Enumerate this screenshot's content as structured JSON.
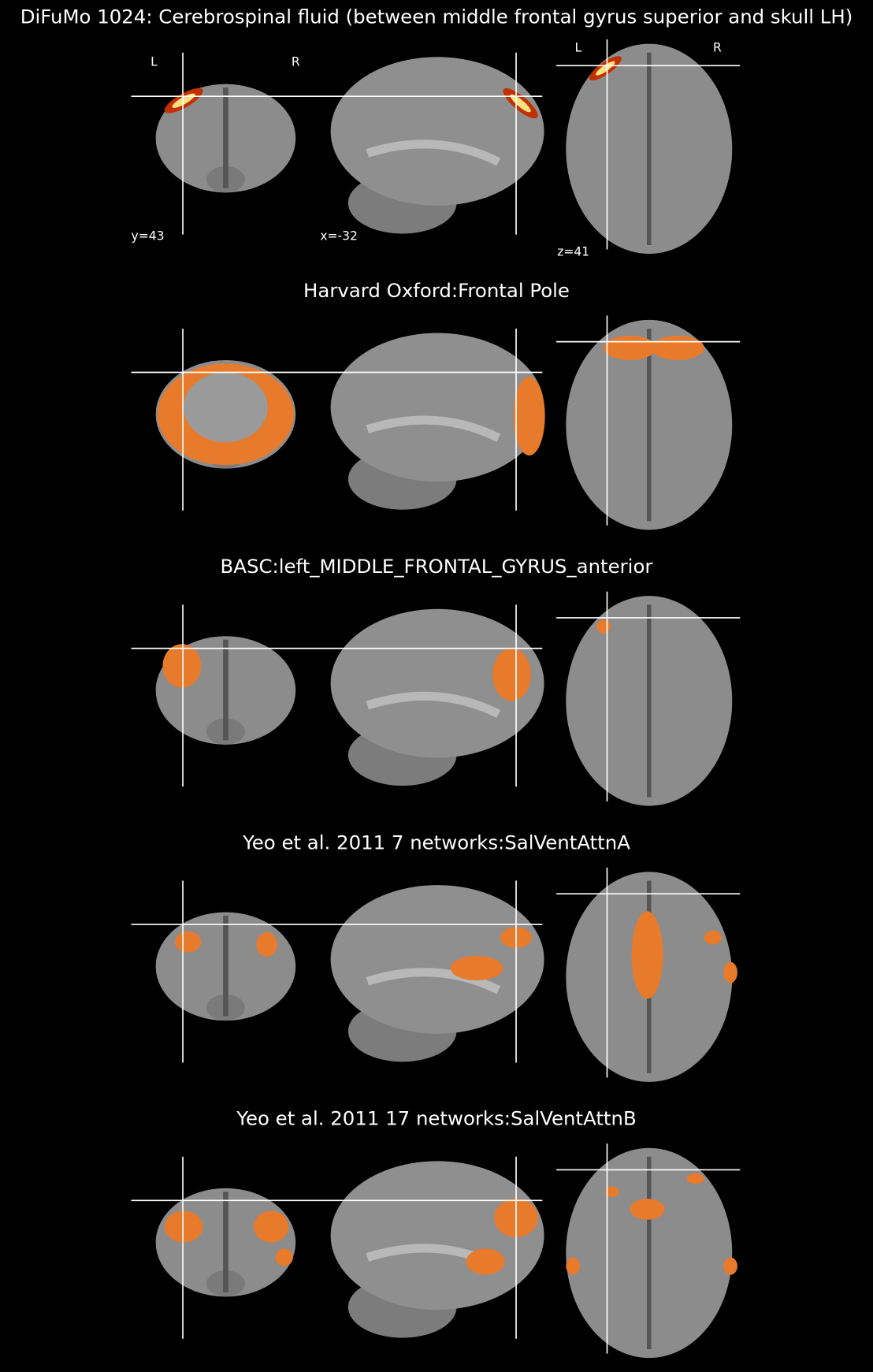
{
  "title": "DiFuMo 1024: Cerebrospinal fluid (between middle frontal gyrus superior and skull LH)",
  "slice_labels": {
    "left": "L",
    "right": "R",
    "coronal": "y=43",
    "sagittal": "x=-32",
    "axial": "z=41"
  },
  "atlases": [
    "Harvard Oxford:Frontal Pole",
    "BASC:left_MIDDLE_FRONTAL_GYRUS_anterior",
    "Yeo et al. 2011 7 networks:SalVentAttnA",
    "Yeo et al. 2011 17 networks:SalVentAttnB"
  ]
}
